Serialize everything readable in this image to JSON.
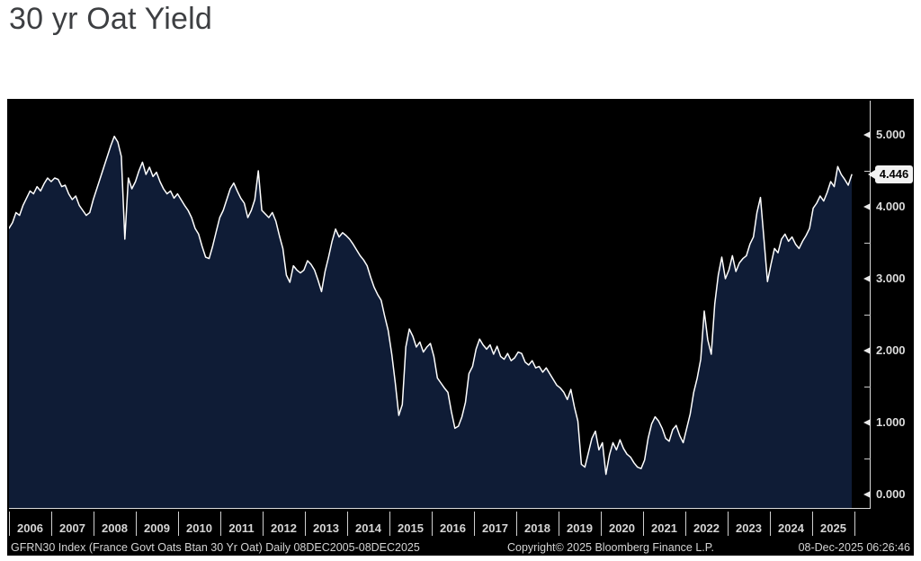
{
  "page": {
    "title": "30 yr Oat Yield"
  },
  "chart_data": {
    "type": "area",
    "title": "30 yr Oat Yield",
    "security": "GFRN30 Index",
    "period": "Daily 08DEC2005-08DEC2025",
    "x_tick_labels": [
      "2006",
      "2007",
      "2008",
      "2009",
      "2010",
      "2011",
      "2012",
      "2013",
      "2014",
      "2015",
      "2016",
      "2017",
      "2018",
      "2019",
      "2020",
      "2021",
      "2022",
      "2023",
      "2024",
      "2025"
    ],
    "y_ticks": [
      0,
      1,
      2,
      3,
      4,
      5
    ],
    "y_tick_labels": [
      "0.000",
      "1.000",
      "2.000",
      "3.000",
      "4.000",
      "5.000"
    ],
    "y_minor_ticks": [
      0.5,
      1.5,
      2.5,
      3.5,
      4.5
    ],
    "ylim": [
      -0.19,
      5.48
    ],
    "grid": "off",
    "legend": "none",
    "last_price": 4.446,
    "last_price_label": "4.446",
    "colors": {
      "line": "#ffffff",
      "fill": "#0f1c36",
      "panel_bg": "#000000",
      "axis_text": "#dcdcdc",
      "badge_bg": "#f2f2f2",
      "badge_text": "#000000",
      "title_text": "#3d3f42"
    },
    "series": [
      {
        "name": "GFRN30 Index (France Govt Oats Btan 30 Yr Oat)",
        "sampling": "monthly estimates read from daily chart, Dec 2005 - Dec 2025",
        "values": [
          3.7,
          3.78,
          3.92,
          3.88,
          4.02,
          4.12,
          4.22,
          4.18,
          4.28,
          4.22,
          4.32,
          4.4,
          4.35,
          4.4,
          4.38,
          4.28,
          4.3,
          4.18,
          4.1,
          4.15,
          4.02,
          3.95,
          3.88,
          3.92,
          4.1,
          4.25,
          4.4,
          4.55,
          4.7,
          4.85,
          4.98,
          4.9,
          4.7,
          3.55,
          4.4,
          4.25,
          4.35,
          4.5,
          4.62,
          4.45,
          4.55,
          4.42,
          4.48,
          4.35,
          4.25,
          4.18,
          4.22,
          4.12,
          4.18,
          4.1,
          4.02,
          3.95,
          3.85,
          3.7,
          3.62,
          3.45,
          3.3,
          3.28,
          3.45,
          3.65,
          3.85,
          3.95,
          4.1,
          4.25,
          4.33,
          4.22,
          4.12,
          4.05,
          3.85,
          3.95,
          4.1,
          4.5,
          3.95,
          3.9,
          3.85,
          3.92,
          3.8,
          3.6,
          3.42,
          3.05,
          2.95,
          3.18,
          3.12,
          3.08,
          3.12,
          3.25,
          3.2,
          3.12,
          2.98,
          2.82,
          3.1,
          3.3,
          3.52,
          3.69,
          3.58,
          3.64,
          3.6,
          3.55,
          3.48,
          3.4,
          3.32,
          3.26,
          3.18,
          3.02,
          2.88,
          2.78,
          2.7,
          2.48,
          2.28,
          1.95,
          1.55,
          1.1,
          1.25,
          2.05,
          2.3,
          2.2,
          2.05,
          2.12,
          1.98,
          2.05,
          2.1,
          1.92,
          1.62,
          1.55,
          1.48,
          1.42,
          1.15,
          0.92,
          0.95,
          1.08,
          1.28,
          1.68,
          1.78,
          2.02,
          2.16,
          2.08,
          2.02,
          2.08,
          1.95,
          2.06,
          1.92,
          1.88,
          1.96,
          1.86,
          1.9,
          1.98,
          1.96,
          1.84,
          1.8,
          1.86,
          1.76,
          1.78,
          1.7,
          1.76,
          1.68,
          1.6,
          1.52,
          1.48,
          1.42,
          1.32,
          1.46,
          1.22,
          1.02,
          0.42,
          0.38,
          0.58,
          0.78,
          0.88,
          0.62,
          0.72,
          0.28,
          0.55,
          0.72,
          0.62,
          0.76,
          0.64,
          0.56,
          0.52,
          0.44,
          0.38,
          0.36,
          0.48,
          0.78,
          0.98,
          1.08,
          1.02,
          0.92,
          0.78,
          0.74,
          0.9,
          0.96,
          0.82,
          0.72,
          0.92,
          1.12,
          1.42,
          1.62,
          1.88,
          2.55,
          2.15,
          1.95,
          2.65,
          3.05,
          3.3,
          3.0,
          3.12,
          3.32,
          3.1,
          3.22,
          3.28,
          3.32,
          3.48,
          3.58,
          3.92,
          4.13,
          3.55,
          2.96,
          3.2,
          3.42,
          3.36,
          3.55,
          3.62,
          3.52,
          3.58,
          3.48,
          3.42,
          3.52,
          3.6,
          3.7,
          3.98,
          4.05,
          4.15,
          4.08,
          4.2,
          4.35,
          4.28,
          4.56,
          4.45,
          4.38,
          4.3,
          4.446
        ]
      }
    ]
  },
  "footer": {
    "left": "GFRN30 Index (France Govt Oats Btan 30 Yr Oat) Daily 08DEC2005-08DEC2025",
    "center": "Copyright© 2025 Bloomberg Finance L.P.",
    "right": "08-Dec-2025 06:26:46"
  }
}
